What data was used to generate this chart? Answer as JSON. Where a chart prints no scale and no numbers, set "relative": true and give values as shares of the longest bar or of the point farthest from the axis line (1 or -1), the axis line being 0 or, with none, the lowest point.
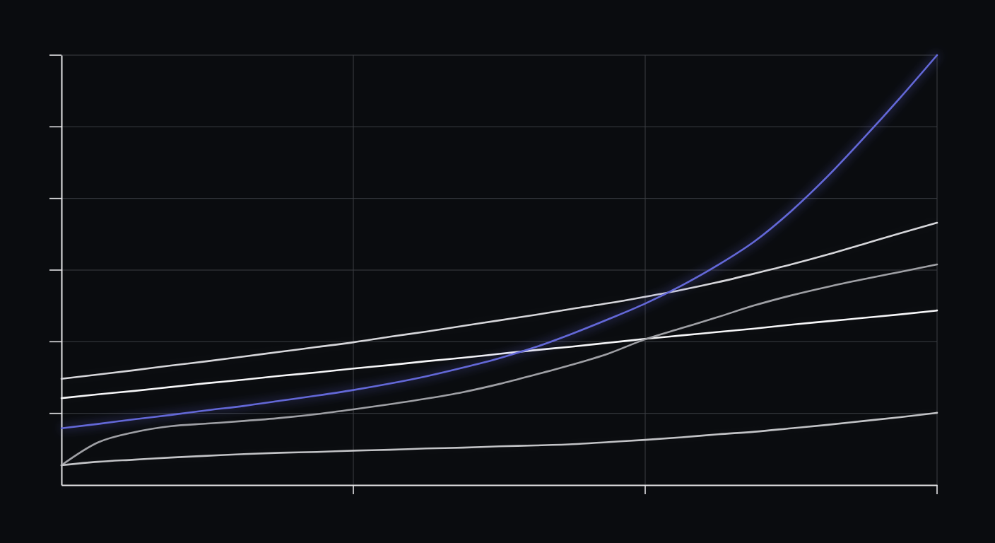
{
  "chart_data": {
    "type": "line",
    "relative": true,
    "grid": true,
    "categories": [
      null,
      null,
      null,
      null,
      null,
      null,
      null,
      null,
      null,
      null,
      null,
      null,
      null,
      null,
      null,
      null,
      null,
      null,
      null,
      null,
      null,
      null,
      null,
      null,
      null
    ],
    "series": [
      {
        "color": "#d6d6da",
        "values": [
          0.247,
          0.257,
          0.267,
          0.278,
          0.288,
          0.299,
          0.31,
          0.321,
          0.332,
          0.345,
          0.357,
          0.37,
          0.383,
          0.396,
          0.41,
          0.423,
          0.438,
          0.454,
          0.472,
          0.492,
          0.513,
          0.536,
          0.561,
          0.586,
          0.61
        ]
      },
      {
        "color": "#f6f6f8",
        "values": [
          0.202,
          0.211,
          0.219,
          0.228,
          0.237,
          0.245,
          0.254,
          0.262,
          0.271,
          0.279,
          0.288,
          0.296,
          0.305,
          0.314,
          0.322,
          0.331,
          0.34,
          0.348,
          0.356,
          0.364,
          0.373,
          0.381,
          0.389,
          0.397,
          0.406
        ]
      },
      {
        "color": "#9fa0a5",
        "values": [
          0.046,
          0.099,
          0.123,
          0.137,
          0.143,
          0.149,
          0.156,
          0.165,
          0.176,
          0.188,
          0.201,
          0.216,
          0.235,
          0.257,
          0.28,
          0.306,
          0.339,
          0.365,
          0.391,
          0.418,
          0.441,
          0.461,
          0.479,
          0.496,
          0.513
        ]
      },
      {
        "color": "#c2c3c6",
        "values": [
          0.046,
          0.054,
          0.059,
          0.064,
          0.068,
          0.072,
          0.075,
          0.077,
          0.08,
          0.082,
          0.085,
          0.087,
          0.09,
          0.092,
          0.095,
          0.1,
          0.105,
          0.111,
          0.118,
          0.124,
          0.132,
          0.14,
          0.149,
          0.158,
          0.168
        ]
      },
      {
        "color": "#6468d8",
        "values": [
          0.132,
          0.142,
          0.153,
          0.163,
          0.174,
          0.184,
          0.196,
          0.208,
          0.221,
          0.236,
          0.253,
          0.273,
          0.295,
          0.321,
          0.352,
          0.386,
          0.422,
          0.464,
          0.512,
          0.567,
          0.637,
          0.718,
          0.808,
          0.902,
          1
        ]
      }
    ]
  }
}
